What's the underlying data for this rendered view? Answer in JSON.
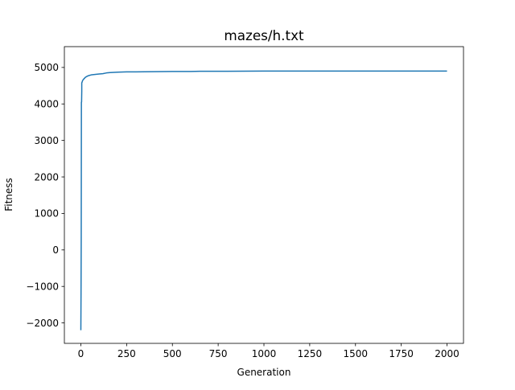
{
  "chart_data": {
    "type": "line",
    "title": "mazes/h.txt",
    "xlabel": "Generation",
    "ylabel": "Fitness",
    "xlim": [
      -90,
      2090
    ],
    "ylim": [
      -2560,
      5570
    ],
    "xticks": [
      0,
      250,
      500,
      750,
      1000,
      1250,
      1500,
      1750,
      2000
    ],
    "xtick_labels": [
      "0",
      "250",
      "500",
      "750",
      "1000",
      "1250",
      "1500",
      "1750",
      "2000"
    ],
    "yticks": [
      -2000,
      -1000,
      0,
      1000,
      2000,
      3000,
      4000,
      5000
    ],
    "ytick_labels": [
      "−2000",
      "−1000",
      "0",
      "1000",
      "2000",
      "3000",
      "4000",
      "5000"
    ],
    "grid": false,
    "colors": {
      "line": "#1f77b4",
      "axes": "#000000",
      "background": "#ffffff"
    },
    "series": [
      {
        "x": [
          0,
          1,
          2,
          3,
          3,
          4,
          5,
          5,
          7,
          8,
          10,
          12,
          15,
          20,
          22,
          28,
          35,
          45,
          60,
          80,
          100,
          120,
          140,
          160,
          200,
          250,
          300,
          400,
          500,
          600,
          650,
          800,
          1000,
          1200,
          1500,
          1800,
          2000
        ],
        "y": [
          -2200,
          -1200,
          300,
          3950,
          4050,
          4050,
          4350,
          4580,
          4600,
          4620,
          4640,
          4660,
          4680,
          4700,
          4720,
          4740,
          4760,
          4780,
          4800,
          4810,
          4820,
          4830,
          4850,
          4860,
          4870,
          4880,
          4880,
          4885,
          4890,
          4890,
          4895,
          4895,
          4900,
          4900,
          4900,
          4900,
          4900
        ]
      }
    ]
  }
}
